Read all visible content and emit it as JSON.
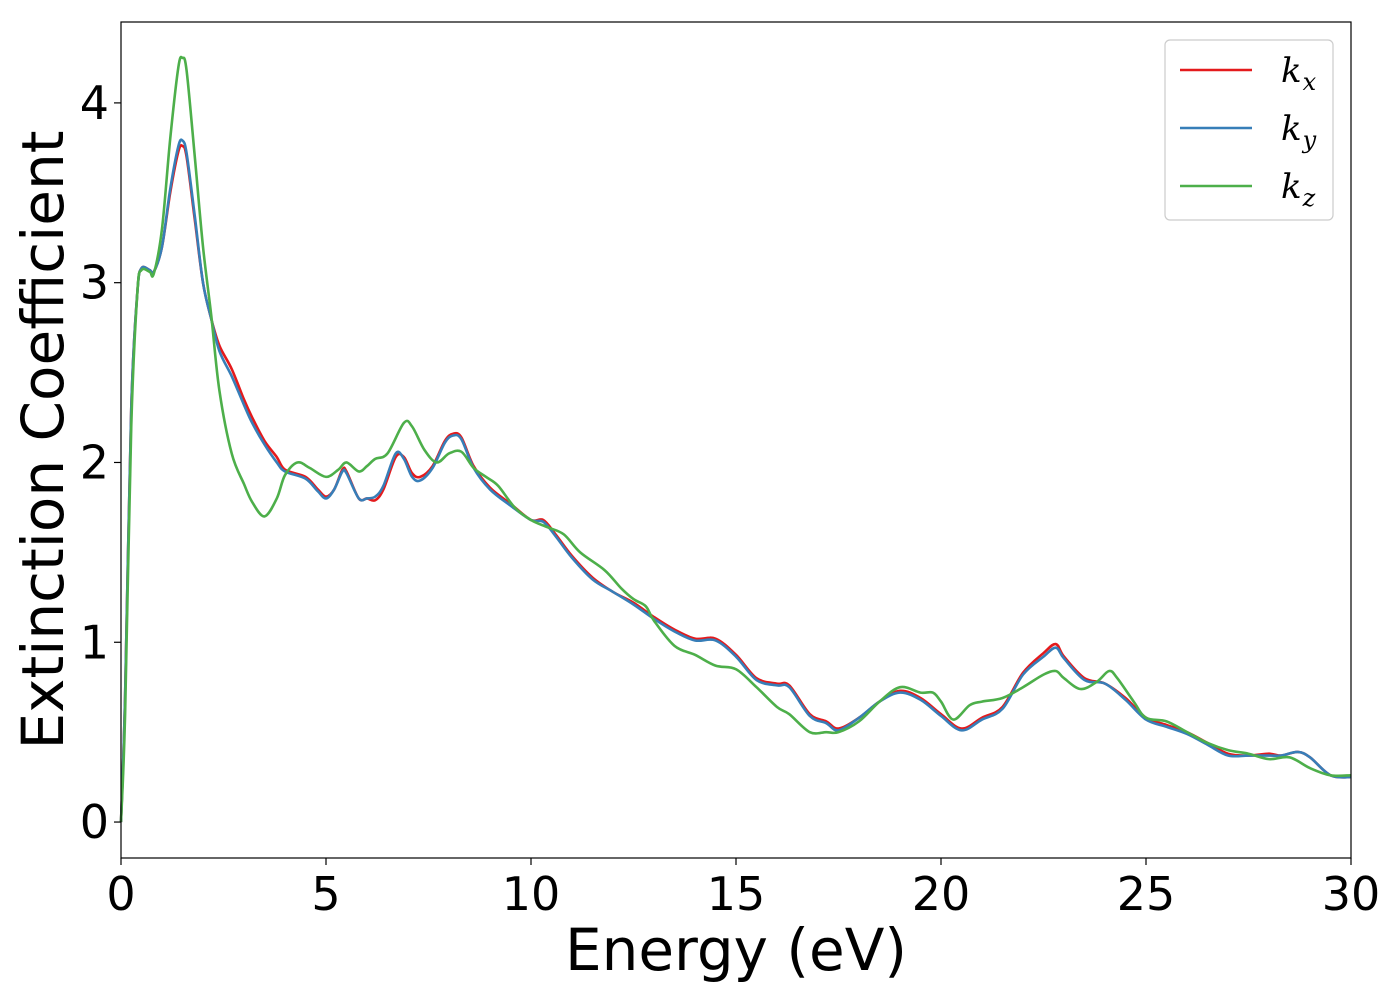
{
  "chart_data": {
    "type": "line",
    "xlabel": "Energy (eV)",
    "ylabel": "Extinction Coefficient",
    "xlim": [
      0,
      30
    ],
    "ylim": [
      -0.2,
      4.45
    ],
    "xticks": [
      0,
      5,
      10,
      15,
      20,
      25,
      30
    ],
    "yticks": [
      0,
      1,
      2,
      3,
      4
    ],
    "grid": false,
    "legend_position": "top-right",
    "series": [
      {
        "name": "k_x",
        "label_main": "k",
        "label_sub": "x",
        "color": "#e41a1c",
        "points": [
          [
            0,
            0
          ],
          [
            0.1,
            0.7
          ],
          [
            0.25,
            2.3
          ],
          [
            0.4,
            2.95
          ],
          [
            0.5,
            3.08
          ],
          [
            0.7,
            3.07
          ],
          [
            0.8,
            3.06
          ],
          [
            1.0,
            3.2
          ],
          [
            1.2,
            3.5
          ],
          [
            1.4,
            3.73
          ],
          [
            1.5,
            3.76
          ],
          [
            1.6,
            3.7
          ],
          [
            1.8,
            3.35
          ],
          [
            2.0,
            3.0
          ],
          [
            2.2,
            2.8
          ],
          [
            2.4,
            2.65
          ],
          [
            2.7,
            2.52
          ],
          [
            3.0,
            2.35
          ],
          [
            3.2,
            2.25
          ],
          [
            3.5,
            2.12
          ],
          [
            3.8,
            2.03
          ],
          [
            4.0,
            1.96
          ],
          [
            4.5,
            1.92
          ],
          [
            4.8,
            1.85
          ],
          [
            5.0,
            1.81
          ],
          [
            5.2,
            1.85
          ],
          [
            5.4,
            1.96
          ],
          [
            5.5,
            1.95
          ],
          [
            5.8,
            1.8
          ],
          [
            6.0,
            1.8
          ],
          [
            6.2,
            1.79
          ],
          [
            6.4,
            1.85
          ],
          [
            6.7,
            2.03
          ],
          [
            6.9,
            2.03
          ],
          [
            7.1,
            1.94
          ],
          [
            7.3,
            1.92
          ],
          [
            7.6,
            1.98
          ],
          [
            7.9,
            2.12
          ],
          [
            8.1,
            2.16
          ],
          [
            8.3,
            2.14
          ],
          [
            8.6,
            1.98
          ],
          [
            9.0,
            1.86
          ],
          [
            9.5,
            1.77
          ],
          [
            10.0,
            1.68
          ],
          [
            10.3,
            1.68
          ],
          [
            10.6,
            1.6
          ],
          [
            11.0,
            1.48
          ],
          [
            11.5,
            1.36
          ],
          [
            12.0,
            1.28
          ],
          [
            12.5,
            1.22
          ],
          [
            13.0,
            1.14
          ],
          [
            13.5,
            1.07
          ],
          [
            14.0,
            1.02
          ],
          [
            14.5,
            1.02
          ],
          [
            15.0,
            0.93
          ],
          [
            15.5,
            0.8
          ],
          [
            16.0,
            0.77
          ],
          [
            16.3,
            0.76
          ],
          [
            16.8,
            0.6
          ],
          [
            17.2,
            0.56
          ],
          [
            17.5,
            0.52
          ],
          [
            18.0,
            0.58
          ],
          [
            18.5,
            0.67
          ],
          [
            19.0,
            0.73
          ],
          [
            19.5,
            0.69
          ],
          [
            20.0,
            0.6
          ],
          [
            20.5,
            0.52
          ],
          [
            21.0,
            0.58
          ],
          [
            21.5,
            0.64
          ],
          [
            22.0,
            0.83
          ],
          [
            22.5,
            0.94
          ],
          [
            22.8,
            0.99
          ],
          [
            23.0,
            0.92
          ],
          [
            23.5,
            0.8
          ],
          [
            24.0,
            0.77
          ],
          [
            24.5,
            0.69
          ],
          [
            25.0,
            0.58
          ],
          [
            25.5,
            0.54
          ],
          [
            26.0,
            0.5
          ],
          [
            26.5,
            0.44
          ],
          [
            27.0,
            0.38
          ],
          [
            27.5,
            0.37
          ],
          [
            28.0,
            0.38
          ],
          [
            28.3,
            0.37
          ],
          [
            28.7,
            0.39
          ],
          [
            29.0,
            0.36
          ],
          [
            29.5,
            0.26
          ],
          [
            30.0,
            0.25
          ]
        ]
      },
      {
        "name": "k_y",
        "label_main": "k",
        "label_sub": "y",
        "color": "#377eb8",
        "points": [
          [
            0,
            0
          ],
          [
            0.1,
            0.7
          ],
          [
            0.25,
            2.3
          ],
          [
            0.4,
            2.95
          ],
          [
            0.5,
            3.08
          ],
          [
            0.7,
            3.07
          ],
          [
            0.8,
            3.06
          ],
          [
            1.0,
            3.2
          ],
          [
            1.2,
            3.52
          ],
          [
            1.4,
            3.76
          ],
          [
            1.5,
            3.79
          ],
          [
            1.6,
            3.72
          ],
          [
            1.8,
            3.37
          ],
          [
            2.0,
            3.0
          ],
          [
            2.2,
            2.8
          ],
          [
            2.4,
            2.62
          ],
          [
            2.7,
            2.48
          ],
          [
            3.0,
            2.32
          ],
          [
            3.2,
            2.22
          ],
          [
            3.5,
            2.1
          ],
          [
            3.8,
            2.0
          ],
          [
            4.0,
            1.95
          ],
          [
            4.5,
            1.91
          ],
          [
            4.8,
            1.84
          ],
          [
            5.0,
            1.8
          ],
          [
            5.2,
            1.85
          ],
          [
            5.4,
            1.95
          ],
          [
            5.5,
            1.94
          ],
          [
            5.8,
            1.8
          ],
          [
            6.0,
            1.8
          ],
          [
            6.2,
            1.81
          ],
          [
            6.4,
            1.87
          ],
          [
            6.7,
            2.05
          ],
          [
            6.9,
            2.02
          ],
          [
            7.1,
            1.92
          ],
          [
            7.3,
            1.9
          ],
          [
            7.6,
            1.97
          ],
          [
            7.9,
            2.11
          ],
          [
            8.1,
            2.15
          ],
          [
            8.3,
            2.13
          ],
          [
            8.6,
            1.97
          ],
          [
            9.0,
            1.85
          ],
          [
            9.5,
            1.76
          ],
          [
            10.0,
            1.68
          ],
          [
            10.3,
            1.67
          ],
          [
            10.6,
            1.59
          ],
          [
            11.0,
            1.47
          ],
          [
            11.5,
            1.35
          ],
          [
            12.0,
            1.28
          ],
          [
            12.5,
            1.21
          ],
          [
            13.0,
            1.13
          ],
          [
            13.5,
            1.06
          ],
          [
            14.0,
            1.01
          ],
          [
            14.5,
            1.01
          ],
          [
            15.0,
            0.92
          ],
          [
            15.5,
            0.79
          ],
          [
            16.0,
            0.76
          ],
          [
            16.3,
            0.75
          ],
          [
            16.8,
            0.59
          ],
          [
            17.2,
            0.55
          ],
          [
            17.5,
            0.51
          ],
          [
            18.0,
            0.58
          ],
          [
            18.5,
            0.67
          ],
          [
            19.0,
            0.72
          ],
          [
            19.5,
            0.68
          ],
          [
            20.0,
            0.59
          ],
          [
            20.5,
            0.51
          ],
          [
            21.0,
            0.57
          ],
          [
            21.5,
            0.63
          ],
          [
            22.0,
            0.82
          ],
          [
            22.5,
            0.92
          ],
          [
            22.8,
            0.97
          ],
          [
            23.0,
            0.91
          ],
          [
            23.5,
            0.79
          ],
          [
            24.0,
            0.77
          ],
          [
            24.5,
            0.68
          ],
          [
            25.0,
            0.57
          ],
          [
            25.5,
            0.53
          ],
          [
            26.0,
            0.49
          ],
          [
            26.5,
            0.43
          ],
          [
            27.0,
            0.37
          ],
          [
            27.5,
            0.37
          ],
          [
            28.0,
            0.37
          ],
          [
            28.3,
            0.37
          ],
          [
            28.7,
            0.39
          ],
          [
            29.0,
            0.36
          ],
          [
            29.5,
            0.26
          ],
          [
            30.0,
            0.25
          ]
        ]
      },
      {
        "name": "k_z",
        "label_main": "k",
        "label_sub": "z",
        "color": "#4daf4a",
        "points": [
          [
            0,
            0
          ],
          [
            0.1,
            0.6
          ],
          [
            0.25,
            2.2
          ],
          [
            0.4,
            2.95
          ],
          [
            0.5,
            3.07
          ],
          [
            0.7,
            3.06
          ],
          [
            0.8,
            3.05
          ],
          [
            1.0,
            3.3
          ],
          [
            1.2,
            3.8
          ],
          [
            1.4,
            4.2
          ],
          [
            1.5,
            4.25
          ],
          [
            1.6,
            4.18
          ],
          [
            1.8,
            3.7
          ],
          [
            2.0,
            3.2
          ],
          [
            2.2,
            2.82
          ],
          [
            2.4,
            2.4
          ],
          [
            2.7,
            2.05
          ],
          [
            3.0,
            1.88
          ],
          [
            3.2,
            1.78
          ],
          [
            3.5,
            1.7
          ],
          [
            3.8,
            1.8
          ],
          [
            4.0,
            1.93
          ],
          [
            4.3,
            2.0
          ],
          [
            4.6,
            1.97
          ],
          [
            5.0,
            1.92
          ],
          [
            5.3,
            1.96
          ],
          [
            5.5,
            2.0
          ],
          [
            5.8,
            1.95
          ],
          [
            6.0,
            1.98
          ],
          [
            6.2,
            2.02
          ],
          [
            6.5,
            2.05
          ],
          [
            6.9,
            2.22
          ],
          [
            7.1,
            2.2
          ],
          [
            7.4,
            2.07
          ],
          [
            7.7,
            2.0
          ],
          [
            8.0,
            2.05
          ],
          [
            8.3,
            2.06
          ],
          [
            8.6,
            1.97
          ],
          [
            8.9,
            1.92
          ],
          [
            9.2,
            1.87
          ],
          [
            9.6,
            1.75
          ],
          [
            10.0,
            1.68
          ],
          [
            10.4,
            1.64
          ],
          [
            10.8,
            1.6
          ],
          [
            11.2,
            1.5
          ],
          [
            11.8,
            1.4
          ],
          [
            12.2,
            1.3
          ],
          [
            12.5,
            1.24
          ],
          [
            12.8,
            1.2
          ],
          [
            13.0,
            1.12
          ],
          [
            13.5,
            0.98
          ],
          [
            14.0,
            0.93
          ],
          [
            14.5,
            0.87
          ],
          [
            15.0,
            0.85
          ],
          [
            15.5,
            0.75
          ],
          [
            16.0,
            0.64
          ],
          [
            16.3,
            0.6
          ],
          [
            16.8,
            0.5
          ],
          [
            17.2,
            0.5
          ],
          [
            17.5,
            0.5
          ],
          [
            18.0,
            0.56
          ],
          [
            18.5,
            0.67
          ],
          [
            19.0,
            0.75
          ],
          [
            19.5,
            0.72
          ],
          [
            19.8,
            0.72
          ],
          [
            20.0,
            0.67
          ],
          [
            20.3,
            0.57
          ],
          [
            20.7,
            0.65
          ],
          [
            21.0,
            0.67
          ],
          [
            21.5,
            0.69
          ],
          [
            22.0,
            0.75
          ],
          [
            22.5,
            0.82
          ],
          [
            22.8,
            0.84
          ],
          [
            23.0,
            0.8
          ],
          [
            23.4,
            0.74
          ],
          [
            23.8,
            0.78
          ],
          [
            24.1,
            0.84
          ],
          [
            24.3,
            0.8
          ],
          [
            24.7,
            0.67
          ],
          [
            25.0,
            0.58
          ],
          [
            25.5,
            0.56
          ],
          [
            26.0,
            0.5
          ],
          [
            26.5,
            0.44
          ],
          [
            27.0,
            0.4
          ],
          [
            27.5,
            0.38
          ],
          [
            28.0,
            0.35
          ],
          [
            28.5,
            0.36
          ],
          [
            29.0,
            0.3
          ],
          [
            29.5,
            0.26
          ],
          [
            30.0,
            0.26
          ]
        ]
      }
    ]
  }
}
